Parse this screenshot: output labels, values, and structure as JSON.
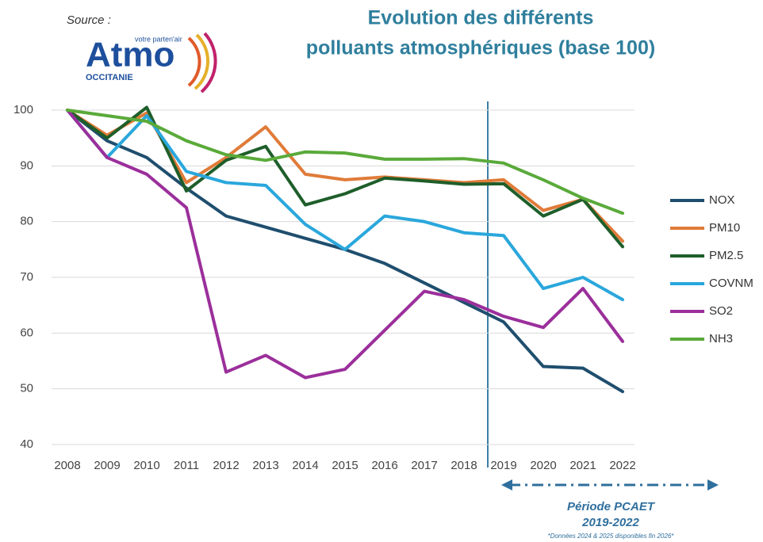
{
  "chart_data": {
    "type": "line",
    "title_lines": [
      "Evolution des différents",
      "polluants atmosphériques (base 100)"
    ],
    "source": {
      "label": "Source :",
      "logo": "Atmo",
      "tagline": "votre parten'air",
      "region": "OCCITANIE"
    },
    "categories": [
      "2008",
      "2009",
      "2010",
      "2011",
      "2012",
      "2013",
      "2014",
      "2015",
      "2016",
      "2017",
      "2018",
      "2019",
      "2020",
      "2021",
      "2022"
    ],
    "series": [
      {
        "name": "NOX",
        "color": "#1f4e6e",
        "values": [
          100,
          94.5,
          91.5,
          86,
          81,
          79,
          77,
          75,
          72.5,
          69,
          65.5,
          62,
          54,
          53.7,
          49.5
        ]
      },
      {
        "name": "PM10",
        "color": "#e07b39",
        "values": [
          100,
          95.5,
          99.5,
          87,
          91.5,
          97,
          88.5,
          87.5,
          88,
          87.5,
          87,
          87.5,
          82,
          84,
          76.5
        ]
      },
      {
        "name": "PM2.5",
        "color": "#1e5e2a",
        "values": [
          100,
          95,
          100.5,
          85.5,
          91,
          93.5,
          83,
          85,
          87.8,
          87.3,
          86.7,
          86.8,
          81,
          84,
          75.5
        ]
      },
      {
        "name": "COVNM",
        "color": "#2aa7dc",
        "values": [
          100,
          91.5,
          99,
          89,
          87,
          86.5,
          79.5,
          75,
          81,
          80,
          78,
          77.5,
          68,
          70,
          66
        ]
      },
      {
        "name": "SO2",
        "color": "#9b2f9b",
        "values": [
          100,
          91.5,
          88.5,
          82.5,
          53,
          56,
          52,
          53.5,
          60.5,
          67.5,
          66,
          63,
          61,
          68,
          58.5
        ]
      },
      {
        "name": "NH3",
        "color": "#5aaa3a",
        "values": [
          100,
          99,
          98,
          94.5,
          92,
          91,
          92.5,
          92.3,
          91.2,
          91.2,
          91.3,
          90.5,
          87.5,
          84.2,
          81.5
        ]
      }
    ],
    "ylim": [
      40,
      100
    ],
    "yticks": [
      40,
      50,
      60,
      70,
      80,
      90,
      100
    ],
    "grid": true,
    "legend": "right",
    "annotations": {
      "period_label": "Période PCAET",
      "period_years": "2019-2022",
      "footnote": "*Données 2024 & 2025 disponibles fin 2026*"
    }
  }
}
